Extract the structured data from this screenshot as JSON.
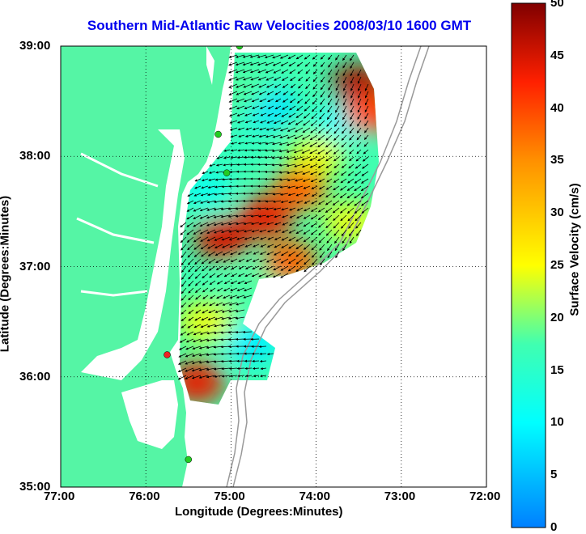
{
  "title": "Southern Mid-Atlantic Raw Velocities 2008/03/10 1600 GMT",
  "xlabel": "Longitude (Degrees:Minutes)",
  "ylabel": "Latitude (Degrees:Minutes)",
  "colorbar_label": "Surface Velocity (cm/s)",
  "x_ticks": [
    "77:00",
    "76:00",
    "75:00",
    "74:00",
    "73:00",
    "72:00"
  ],
  "y_ticks": [
    "39:00",
    "38:00",
    "37:00",
    "36:00",
    "35:00"
  ],
  "colorbar_ticks": [
    "50",
    "45",
    "40",
    "35",
    "30",
    "25",
    "20",
    "15",
    "10",
    "5",
    "0"
  ],
  "chart_data": {
    "type": "heatmap",
    "subtype": "surface-current-vector-map",
    "xlim": [
      -77,
      -72
    ],
    "ylim": [
      35,
      39
    ],
    "color_range": [
      0,
      50
    ],
    "colormap": "jet",
    "land_color": "#55f5a5",
    "grid": true,
    "regions_cm_s": [
      {
        "lon": -74.55,
        "lat": 38.45,
        "value": 8
      },
      {
        "lon": -73.7,
        "lat": 38.3,
        "value": 10
      },
      {
        "lon": -73.5,
        "lat": 38.65,
        "value": 48
      },
      {
        "lon": -73.35,
        "lat": 38.4,
        "value": 40
      },
      {
        "lon": -74.9,
        "lat": 38.6,
        "value": 18
      },
      {
        "lon": -74.0,
        "lat": 38.0,
        "value": 24
      },
      {
        "lon": -74.2,
        "lat": 37.7,
        "value": 38
      },
      {
        "lon": -74.6,
        "lat": 37.45,
        "value": 44
      },
      {
        "lon": -75.1,
        "lat": 37.25,
        "value": 45
      },
      {
        "lon": -73.6,
        "lat": 37.4,
        "value": 24
      },
      {
        "lon": -74.3,
        "lat": 37.05,
        "value": 38
      },
      {
        "lon": -74.8,
        "lat": 36.8,
        "value": 18
      },
      {
        "lon": -75.3,
        "lat": 37.7,
        "value": 12
      },
      {
        "lon": -74.75,
        "lat": 36.3,
        "value": 9
      },
      {
        "lon": -75.3,
        "lat": 36.5,
        "value": 24
      },
      {
        "lon": -75.4,
        "lat": 35.95,
        "value": 44
      },
      {
        "lon": -74.9,
        "lat": 38.1,
        "value": 16
      }
    ],
    "stations": [
      {
        "lon": -74.9,
        "lat": 39.0,
        "color": "#22cc22"
      },
      {
        "lon": -75.15,
        "lat": 38.2,
        "color": "#22cc22"
      },
      {
        "lon": -75.05,
        "lat": 37.85,
        "color": "#22cc22"
      },
      {
        "lon": -75.75,
        "lat": 36.2,
        "color": "#ee2222"
      },
      {
        "lon": -75.5,
        "lat": 35.25,
        "color": "#22cc22"
      }
    ]
  }
}
